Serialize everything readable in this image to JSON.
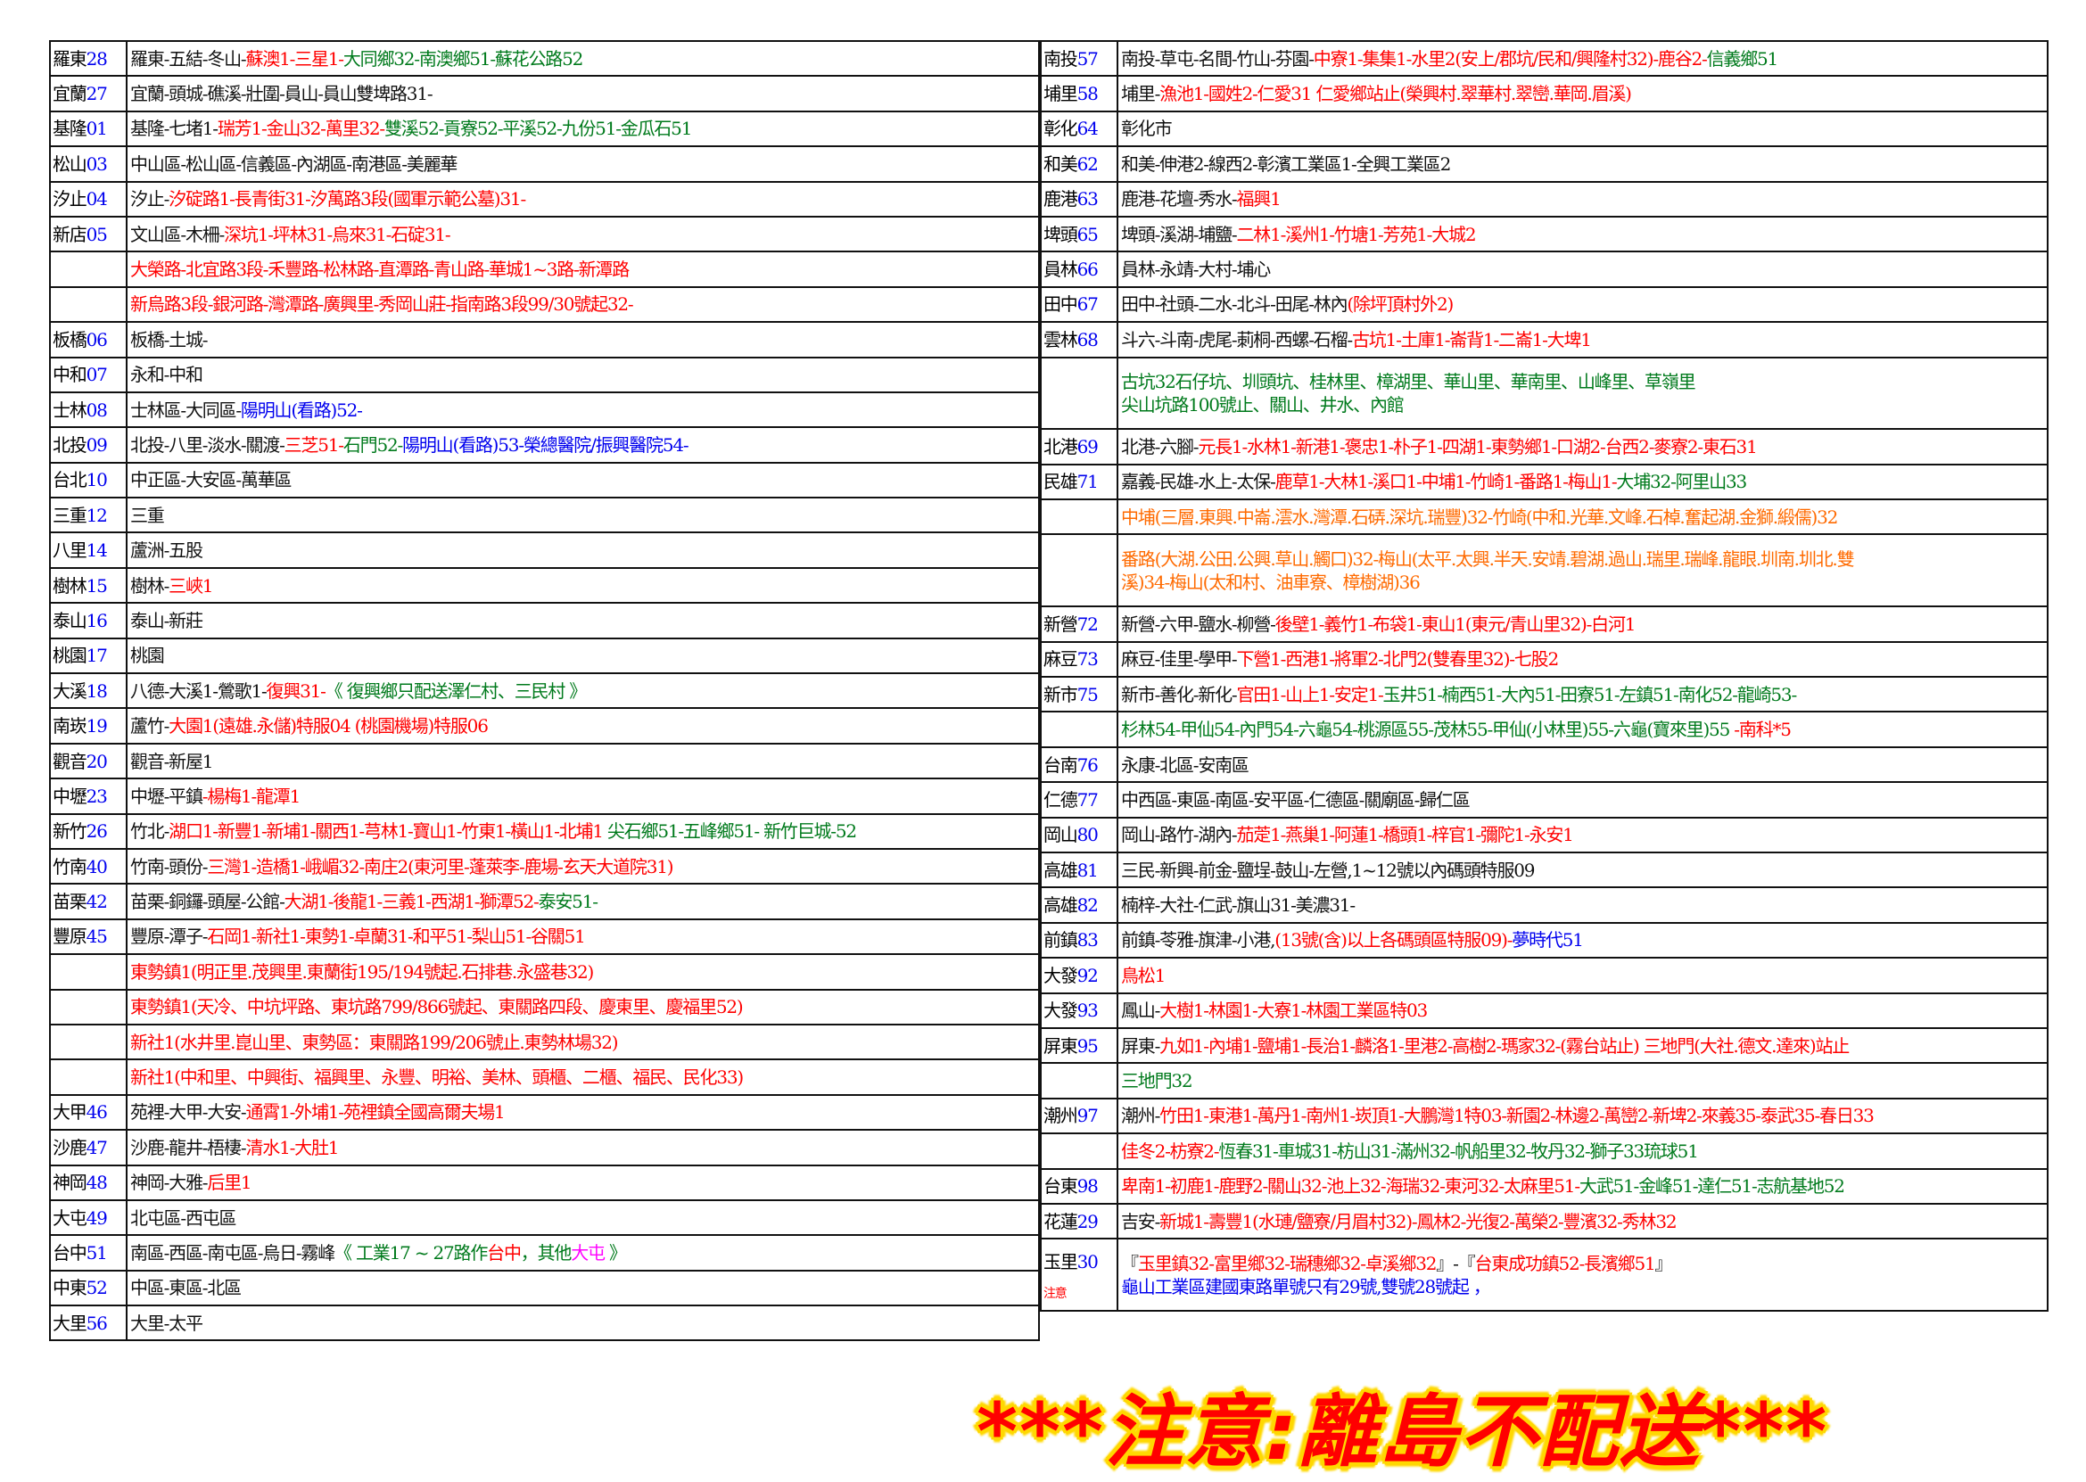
{
  "colors": {
    "k": "#111111",
    "r": "#ff0000",
    "g": "#007a1c",
    "b": "#0000ee",
    "o": "#ff6a00",
    "m": "#ff00ff",
    "banner_fill": "#ff0000",
    "banner_outline": "#ffd800"
  },
  "left_rows": [
    {
      "name": "羅東",
      "num": "28",
      "lines": [
        [
          [
            "k",
            "羅東-五結-冬山-"
          ],
          [
            "r",
            "蘇澳1-三星1-"
          ],
          [
            "g",
            "大同鄉32-南澳鄉51-蘇花公路52"
          ]
        ]
      ]
    },
    {
      "name": "宜蘭",
      "num": "27",
      "lines": [
        [
          [
            "k",
            "宜蘭-頭城-礁溪-壯圍-員山-員山雙埤路31-"
          ]
        ]
      ]
    },
    {
      "name": "基隆",
      "num": "01",
      "lines": [
        [
          [
            "k",
            "基隆-七堵1-"
          ],
          [
            "r",
            "瑞芳1-金山32-萬里32-"
          ],
          [
            "g",
            "雙溪52-貢寮52-平溪52-九份51-金瓜石51"
          ]
        ]
      ]
    },
    {
      "name": "松山",
      "num": "03",
      "lines": [
        [
          [
            "k",
            "中山區-松山區-信義區-內湖區-南港區-美麗華"
          ]
        ]
      ]
    },
    {
      "name": "汐止",
      "num": "04",
      "lines": [
        [
          [
            "k",
            "汐止-"
          ],
          [
            "r",
            "汐碇路1-長青街31-汐萬路3段(國軍示範公墓)31-"
          ]
        ]
      ]
    },
    {
      "name": "新店",
      "num": "05",
      "lines": [
        [
          [
            "k",
            "文山區-木柵-"
          ],
          [
            "r",
            "深坑1-坪林31-烏來31-石碇31-"
          ]
        ]
      ]
    },
    {
      "name": "",
      "num": "",
      "lines": [
        [
          [
            "r",
            "大榮路-北宜路3段-禾豐路-松林路-直潭路-青山路-華城1~3路-新潭路"
          ]
        ]
      ]
    },
    {
      "name": "",
      "num": "",
      "lines": [
        [
          [
            "r",
            "新烏路3段-銀河路-灣潭路-廣興里-秀岡山莊-指南路3段99/30號起32-"
          ]
        ]
      ]
    },
    {
      "name": "板橋",
      "num": "06",
      "lines": [
        [
          [
            "k",
            "板橋-土城-"
          ]
        ]
      ]
    },
    {
      "name": "中和",
      "num": "07",
      "lines": [
        [
          [
            "k",
            "永和-中和"
          ]
        ]
      ]
    },
    {
      "name": "士林",
      "num": "08",
      "lines": [
        [
          [
            "k",
            "士林區-大同區-"
          ],
          [
            "b",
            "陽明山(看路)52-"
          ]
        ]
      ]
    },
    {
      "name": "北投",
      "num": "09",
      "lines": [
        [
          [
            "k",
            "北投-八里-淡水-關渡-"
          ],
          [
            "r",
            "三芝51-"
          ],
          [
            "g",
            "石門52-"
          ],
          [
            "b",
            "陽明山(看路)53-榮總醫院/振興醫院54-"
          ]
        ]
      ]
    },
    {
      "name": "台北",
      "num": "10",
      "lines": [
        [
          [
            "k",
            "中正區-大安區-萬華區"
          ]
        ]
      ]
    },
    {
      "name": "三重",
      "num": "12",
      "lines": [
        [
          [
            "k",
            "三重"
          ]
        ]
      ]
    },
    {
      "name": "八里",
      "num": "14",
      "lines": [
        [
          [
            "k",
            "蘆洲-五股"
          ]
        ]
      ]
    },
    {
      "name": "樹林",
      "num": "15",
      "lines": [
        [
          [
            "k",
            "樹林-"
          ],
          [
            "r",
            "三峽1"
          ]
        ]
      ]
    },
    {
      "name": "泰山",
      "num": "16",
      "lines": [
        [
          [
            "k",
            "泰山-新莊"
          ]
        ]
      ]
    },
    {
      "name": "桃園",
      "num": "17",
      "lines": [
        [
          [
            "k",
            "桃園"
          ]
        ]
      ]
    },
    {
      "name": "大溪",
      "num": "18",
      "lines": [
        [
          [
            "k",
            "八德-大溪1-鶯歌1-"
          ],
          [
            "r",
            "復興31-"
          ],
          [
            "g",
            "《 復興鄉只配送澤仁村、三民村 》"
          ]
        ]
      ]
    },
    {
      "name": "南崁",
      "num": "19",
      "lines": [
        [
          [
            "k",
            "蘆竹-"
          ],
          [
            "r",
            "大園1(遠雄.永儲)特服04 (桃園機場)特服06"
          ]
        ]
      ]
    },
    {
      "name": "觀音",
      "num": "20",
      "lines": [
        [
          [
            "k",
            "觀音-新屋1"
          ]
        ]
      ]
    },
    {
      "name": "中壢",
      "num": "23",
      "lines": [
        [
          [
            "k",
            "中壢-平鎮"
          ],
          [
            "r",
            "-楊梅1-龍潭1"
          ]
        ]
      ]
    },
    {
      "name": "新竹",
      "num": "26",
      "lines": [
        [
          [
            "k",
            "竹北-"
          ],
          [
            "r",
            "湖口1-新豐1-新埔1-關西1-芎林1-寶山1-竹東1-橫山1-北埔1 "
          ],
          [
            "g",
            "尖石鄉51-五峰鄉51- 新竹巨城-52"
          ]
        ]
      ]
    },
    {
      "name": "竹南",
      "num": "40",
      "lines": [
        [
          [
            "k",
            "竹南-頭份-"
          ],
          [
            "r",
            "三灣1-造橋1-峨嵋32-南庄2(東河里-蓬萊李-鹿場-玄天大道院31)"
          ]
        ]
      ]
    },
    {
      "name": "苗栗",
      "num": "42",
      "lines": [
        [
          [
            "k",
            "苗栗-銅鑼-頭屋-公館-"
          ],
          [
            "r",
            "大湖1-後龍1-三義1-西湖1-獅潭52-"
          ],
          [
            "g",
            "泰安51-"
          ]
        ]
      ]
    },
    {
      "name": "豐原",
      "num": "45",
      "lines": [
        [
          [
            "k",
            "豐原-潭子-"
          ],
          [
            "r",
            "石岡1-新社1-東勢1-卓蘭31-和平51-梨山51-谷關51"
          ]
        ]
      ]
    },
    {
      "name": "",
      "num": "",
      "lines": [
        [
          [
            "r",
            "東勢鎮1(明正里.茂興里.東蘭街195/194號起.石排巷.永盛巷32)"
          ]
        ]
      ]
    },
    {
      "name": "",
      "num": "",
      "lines": [
        [
          [
            "r",
            "東勢鎮1(天冷、中坑坪路、東坑路799/866號起、東關路四段、慶東里、慶福里52)"
          ]
        ]
      ]
    },
    {
      "name": "",
      "num": "",
      "lines": [
        [
          [
            "r",
            "新社1(水井里.崑山里、東勢區：東關路199/206號止.東勢林場32)"
          ]
        ]
      ]
    },
    {
      "name": "",
      "num": "",
      "lines": [
        [
          [
            "r",
            "新社1(中和里、中興街、福興里、永豐、明裕、美林、頭櫃、二櫃、福民、民化33)"
          ]
        ]
      ]
    },
    {
      "name": "大甲",
      "num": "46",
      "lines": [
        [
          [
            "k",
            "苑裡-大甲-大安-"
          ],
          [
            "r",
            "通霄1-外埔1-苑裡鎮全國高爾夫場1"
          ]
        ]
      ]
    },
    {
      "name": "沙鹿",
      "num": "47",
      "lines": [
        [
          [
            "k",
            "沙鹿-龍井-梧棲-"
          ],
          [
            "r",
            "清水1-大肚1"
          ]
        ]
      ]
    },
    {
      "name": "神岡",
      "num": "48",
      "lines": [
        [
          [
            "k",
            "神岡-大雅-"
          ],
          [
            "r",
            "后里1"
          ]
        ]
      ]
    },
    {
      "name": "大屯",
      "num": "49",
      "lines": [
        [
          [
            "k",
            "北屯區-西屯區"
          ]
        ]
      ]
    },
    {
      "name": "台中",
      "num": "51",
      "lines": [
        [
          [
            "k",
            "南區-西區-南屯區-烏日-霧峰"
          ],
          [
            "g",
            "《 工業17 ~ 27路作"
          ],
          [
            "r",
            "台中"
          ],
          [
            "g",
            "，其他"
          ],
          [
            "m",
            "大屯"
          ],
          [
            "g",
            " 》"
          ]
        ]
      ]
    },
    {
      "name": "中東",
      "num": "52",
      "lines": [
        [
          [
            "k",
            "中區-東區-北區"
          ]
        ]
      ]
    },
    {
      "name": "大里",
      "num": "56",
      "lines": [
        [
          [
            "k",
            "大里-太平"
          ]
        ]
      ]
    }
  ],
  "right_rows": [
    {
      "name": "南投",
      "num": "57",
      "lines": [
        [
          [
            "k",
            "南投-草屯-名間-竹山-芬園-"
          ],
          [
            "r",
            "中寮1-集集1-水里2(安上/郡坑/民和/興隆村32)-鹿谷2-"
          ],
          [
            "g",
            "信義鄉51"
          ]
        ]
      ]
    },
    {
      "name": "埔里",
      "num": "58",
      "lines": [
        [
          [
            "k",
            "埔里-"
          ],
          [
            "r",
            "漁池1-國姓2-仁愛31 仁愛鄉站止(榮興村.翠華村.翠巒.華岡.眉溪)"
          ]
        ]
      ]
    },
    {
      "name": "彰化",
      "num": "64",
      "lines": [
        [
          [
            "k",
            "彰化市"
          ]
        ]
      ]
    },
    {
      "name": "和美",
      "num": "62",
      "lines": [
        [
          [
            "k",
            "和美-伸港2-線西2-彰濱工業區1-全興工業區2"
          ]
        ]
      ]
    },
    {
      "name": "鹿港",
      "num": "63",
      "lines": [
        [
          [
            "k",
            "鹿港-花壇-秀水-"
          ],
          [
            "r",
            "福興1"
          ]
        ]
      ]
    },
    {
      "name": "埤頭",
      "num": "65",
      "lines": [
        [
          [
            "k",
            "埤頭-溪湖-埔鹽-"
          ],
          [
            "r",
            "二林1-溪州1-竹塘1-芳苑1-大城2"
          ]
        ]
      ]
    },
    {
      "name": "員林",
      "num": "66",
      "lines": [
        [
          [
            "k",
            "員林-永靖-大村-埔心"
          ]
        ]
      ]
    },
    {
      "name": "田中",
      "num": "67",
      "lines": [
        [
          [
            "k",
            "田中-社頭-二水-北斗-田尾-林內"
          ],
          [
            "r",
            "(除坪頂村外2)"
          ]
        ]
      ]
    },
    {
      "name": "雲林",
      "num": "68",
      "lines": [
        [
          [
            "k",
            "斗六-斗南-虎尾-莿桐-西螺-石榴-"
          ],
          [
            "r",
            "古坑1-土庫1-崙背1-二崙1-大埤1"
          ]
        ]
      ]
    },
    {
      "name": "",
      "num": "",
      "lines": [
        [
          [
            "g",
            "古坑32石仔坑、圳頭坑、桂林里、樟湖里、華山里、華南里、山峰里、草嶺里"
          ]
        ],
        [
          [
            "g",
            "尖山坑路100號止、關山、井水、內館"
          ]
        ]
      ]
    },
    {
      "name": "北港",
      "num": "69",
      "lines": [
        [
          [
            "k",
            "北港-六腳-"
          ],
          [
            "r",
            "元長1-水林1-新港1-褒忠1-朴子1-四湖1-東勢鄉1-口湖2-台西2-麥寮2-東石31"
          ]
        ]
      ]
    },
    {
      "name": "民雄",
      "num": "71",
      "lines": [
        [
          [
            "k",
            "嘉義-民雄-水上-太保-"
          ],
          [
            "r",
            "鹿草1-大林1-溪口1-中埔1-竹崎1-番路1-梅山1-"
          ],
          [
            "g",
            "大埔32-阿里山33"
          ]
        ]
      ]
    },
    {
      "name": "",
      "num": "",
      "lines": [
        [
          [
            "o",
            "中埔(三層.東興.中崙.澐水.灣潭.石硦.深坑.瑞豐)32-竹崎(中和.光華.文峰.石棹.奮起湖.金獅.緞儒)32"
          ]
        ]
      ]
    },
    {
      "name": "",
      "num": "",
      "lines": [
        [
          [
            "o",
            "番路(大湖.公田.公興.草山.觸口)32-梅山(太平.太興.半天.安靖.碧湖.過山.瑞里.瑞峰.龍眼.圳南.圳北.雙"
          ]
        ],
        [
          [
            "o",
            "溪)34-梅山(太和村、油車寮、樟樹湖)36"
          ]
        ]
      ]
    },
    {
      "name": "新營",
      "num": "72",
      "lines": [
        [
          [
            "k",
            "新營-六甲-鹽水-柳營-"
          ],
          [
            "r",
            "後壁1-義竹1-布袋1-東山1(東元/青山里32)-白河1"
          ]
        ]
      ]
    },
    {
      "name": "麻豆",
      "num": "73",
      "lines": [
        [
          [
            "k",
            "麻豆-佳里-學甲-"
          ],
          [
            "r",
            "下營1-西港1-將軍2-北門2(雙春里32)-七股2"
          ]
        ]
      ]
    },
    {
      "name": "新市",
      "num": "75",
      "lines": [
        [
          [
            "k",
            "新市-善化-新化-"
          ],
          [
            "r",
            "官田1-山上1-安定1-"
          ],
          [
            "g",
            "玉井51-楠西51-大內51-田寮51-左鎮51-南化52-龍崎53-"
          ]
        ]
      ]
    },
    {
      "name": "",
      "num": "",
      "lines": [
        [
          [
            "g",
            "杉林54-甲仙54-內門54-六龜54-桃源區55-茂林55-甲仙(小林里)55-六龜(寶來里)55 "
          ],
          [
            "r",
            "-南科*5"
          ]
        ]
      ]
    },
    {
      "name": "台南",
      "num": "76",
      "lines": [
        [
          [
            "k",
            "永康-北區-安南區"
          ]
        ]
      ]
    },
    {
      "name": "仁德",
      "num": "77",
      "lines": [
        [
          [
            "k",
            "中西區-東區-南區-安平區-仁德區-關廟區-歸仁區"
          ]
        ]
      ]
    },
    {
      "name": "岡山",
      "num": "80",
      "lines": [
        [
          [
            "k",
            "岡山-路竹-湖內-"
          ],
          [
            "r",
            "茄萣1-燕巢1-阿蓮1-橋頭1-梓官1-彌陀1-永安1"
          ]
        ]
      ]
    },
    {
      "name": "高雄",
      "num": "81",
      "lines": [
        [
          [
            "k",
            "三民-新興-前金-鹽埕-鼓山-左營,1~12號以內碼頭特服09"
          ]
        ]
      ]
    },
    {
      "name": "高雄",
      "num": "82",
      "lines": [
        [
          [
            "k",
            "楠梓-大社-仁武-旗山31-美濃31-"
          ]
        ]
      ]
    },
    {
      "name": "前鎮",
      "num": "83",
      "lines": [
        [
          [
            "k",
            "前鎮-苓雅-旗津-小港,"
          ],
          [
            "r",
            "(13號(含)以上各碼頭區特服09)-"
          ],
          [
            "b",
            "夢時代51"
          ]
        ]
      ]
    },
    {
      "name": "大發",
      "num": "92",
      "lines": [
        [
          [
            "r",
            "鳥松1"
          ]
        ]
      ]
    },
    {
      "name": "大發",
      "num": "93",
      "lines": [
        [
          [
            "k",
            "鳳山-"
          ],
          [
            "r",
            "大樹1-林園1-大寮1-林園工業區特03"
          ]
        ]
      ]
    },
    {
      "name": "屏東",
      "num": "95",
      "lines": [
        [
          [
            "k",
            "屏東-"
          ],
          [
            "r",
            "九如1-內埔1-鹽埔1-長治1-麟洛1-里港2-高樹2-瑪家32-(霧台站止) 三地門(大社.德文.達來)站止"
          ]
        ]
      ]
    },
    {
      "name": "",
      "num": "",
      "lines": [
        [
          [
            "g",
            "三地門32"
          ]
        ]
      ]
    },
    {
      "name": "潮州",
      "num": "97",
      "lines": [
        [
          [
            "k",
            "潮州-"
          ],
          [
            "r",
            "竹田1-東港1-萬丹1-南州1-崁頂1-大鵬灣1特03-新園2-林邊2-萬巒2-新埤2-來義35-泰武35-春日33"
          ]
        ]
      ]
    },
    {
      "name": "",
      "num": "",
      "lines": [
        [
          [
            "r",
            "佳冬2-枋寮2-"
          ],
          [
            "g",
            "恆春31-車城31-枋山31-滿州32-帆船里32-牧丹32-獅子33琉球51"
          ]
        ]
      ]
    },
    {
      "name": "台東",
      "num": "98",
      "lines": [
        [
          [
            "r",
            "卑南1-初鹿1-鹿野2-關山32-池上32-海瑞32-東河32-太麻里51-"
          ],
          [
            "g",
            "大武51-金峰51-達仁51-志航基地52"
          ]
        ]
      ]
    },
    {
      "name": "花蓮",
      "num": "29",
      "lines": [
        [
          [
            "k",
            "吉安-"
          ],
          [
            "r",
            "新城1-壽豐1(水璉/鹽寮/月眉村32)-鳳林2-光復2-萬榮2-豐濱32-秀林32"
          ]
        ]
      ]
    },
    {
      "name": "玉里",
      "num": "30",
      "note": "注意",
      "lines": [
        [
          [
            "k",
            "『"
          ],
          [
            "r",
            "玉里鎮32-富里鄉32-瑞穗鄉32-卓溪鄉32"
          ],
          [
            "k",
            "』-『"
          ],
          [
            "r",
            "台東成功鎮52-長濱鄉51"
          ],
          [
            "k",
            "』"
          ]
        ],
        [
          [
            "b",
            "龜山工業區建國東路單號只有29號,雙號28號起 ，"
          ]
        ]
      ]
    }
  ],
  "banner": {
    "text": "***注意:離島不配送***"
  }
}
